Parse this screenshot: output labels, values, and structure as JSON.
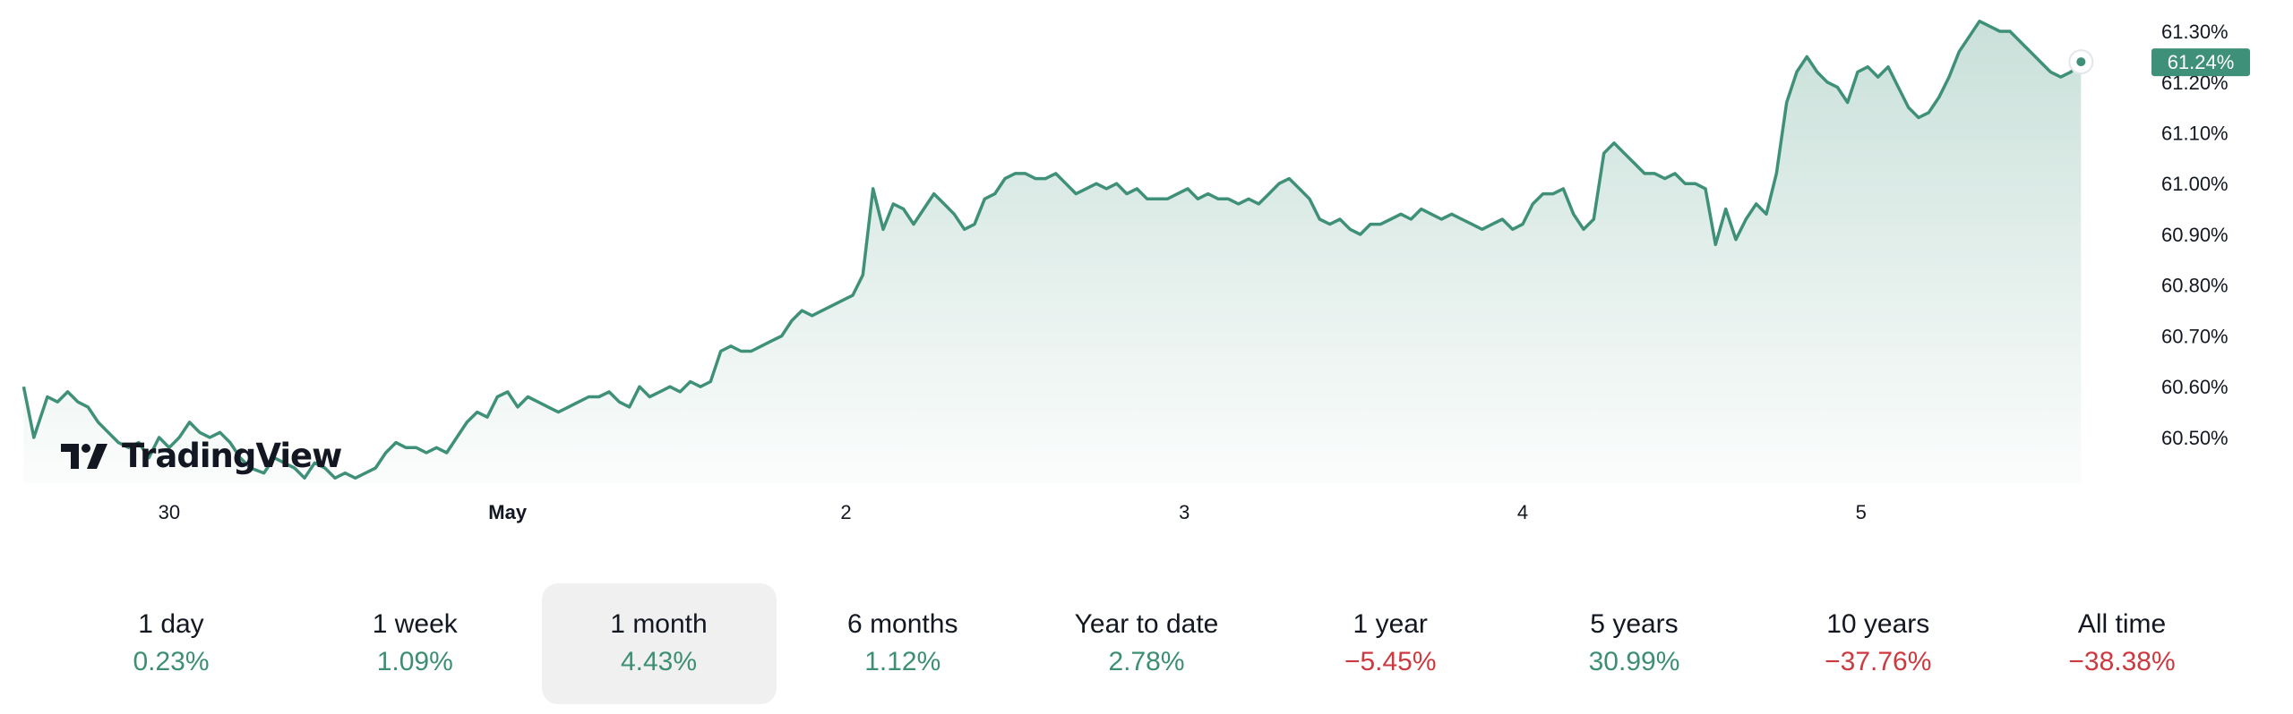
{
  "logo": {
    "text": "TradingView",
    "icon": "tradingview-logo-icon"
  },
  "colors": {
    "line": "#3f9078",
    "positive": "#3d8f72",
    "negative": "#cc3a40",
    "badge": "#3f9078"
  },
  "ranges": [
    {
      "label": "1 day",
      "value": "0.23%",
      "sign": "pos",
      "selected": false
    },
    {
      "label": "1 week",
      "value": "1.09%",
      "sign": "pos",
      "selected": false
    },
    {
      "label": "1 month",
      "value": "4.43%",
      "sign": "pos",
      "selected": true
    },
    {
      "label": "6 months",
      "value": "1.12%",
      "sign": "pos",
      "selected": false
    },
    {
      "label": "Year to date",
      "value": "2.78%",
      "sign": "pos",
      "selected": false
    },
    {
      "label": "1 year",
      "value": "−5.45%",
      "sign": "neg",
      "selected": false
    },
    {
      "label": "5 years",
      "value": "30.99%",
      "sign": "pos",
      "selected": false
    },
    {
      "label": "10 years",
      "value": "−37.76%",
      "sign": "neg",
      "selected": false
    },
    {
      "label": "All time",
      "value": "−38.38%",
      "sign": "neg",
      "selected": false
    }
  ],
  "chart_data": {
    "type": "area",
    "title": "",
    "xlabel": "",
    "ylabel": "",
    "x_ticks": [
      {
        "label": "30",
        "x": 0.5,
        "bold": false
      },
      {
        "label": "May",
        "x": 1.5,
        "bold": true
      },
      {
        "label": "2",
        "x": 2.5,
        "bold": false
      },
      {
        "label": "3",
        "x": 3.5,
        "bold": false
      },
      {
        "label": "4",
        "x": 4.5,
        "bold": false
      },
      {
        "label": "5",
        "x": 5.5,
        "bold": false
      }
    ],
    "xlim": [
      0,
      6.3
    ],
    "y_ticks": [
      "61.30%",
      "61.20%",
      "61.10%",
      "61.00%",
      "60.90%",
      "60.80%",
      "60.70%",
      "60.60%",
      "60.50%"
    ],
    "y_tick_values": [
      61.3,
      61.2,
      61.1,
      61.0,
      60.9,
      60.8,
      60.7,
      60.6,
      60.5
    ],
    "ylim": [
      60.41,
      61.33
    ],
    "last_value_label": "61.24%",
    "last_value": 61.24,
    "grid": false,
    "series": [
      {
        "points": [
          [
            0.07,
            60.6
          ],
          [
            0.1,
            60.5
          ],
          [
            0.14,
            60.58
          ],
          [
            0.17,
            60.57
          ],
          [
            0.2,
            60.59
          ],
          [
            0.23,
            60.57
          ],
          [
            0.26,
            60.56
          ],
          [
            0.29,
            60.53
          ],
          [
            0.32,
            60.51
          ],
          [
            0.35,
            60.49
          ],
          [
            0.38,
            60.48
          ],
          [
            0.41,
            60.49
          ],
          [
            0.44,
            60.46
          ],
          [
            0.47,
            60.5
          ],
          [
            0.5,
            60.48
          ],
          [
            0.53,
            60.5
          ],
          [
            0.56,
            60.53
          ],
          [
            0.59,
            60.51
          ],
          [
            0.62,
            60.5
          ],
          [
            0.65,
            60.51
          ],
          [
            0.68,
            60.49
          ],
          [
            0.71,
            60.46
          ],
          [
            0.74,
            60.44
          ],
          [
            0.78,
            60.43
          ],
          [
            0.81,
            60.46
          ],
          [
            0.84,
            60.45
          ],
          [
            0.87,
            60.44
          ],
          [
            0.9,
            60.42
          ],
          [
            0.93,
            60.45
          ],
          [
            0.96,
            60.44
          ],
          [
            0.99,
            60.42
          ],
          [
            1.02,
            60.43
          ],
          [
            1.05,
            60.42
          ],
          [
            1.08,
            60.43
          ],
          [
            1.11,
            60.44
          ],
          [
            1.14,
            60.47
          ],
          [
            1.17,
            60.49
          ],
          [
            1.2,
            60.48
          ],
          [
            1.23,
            60.48
          ],
          [
            1.26,
            60.47
          ],
          [
            1.29,
            60.48
          ],
          [
            1.32,
            60.47
          ],
          [
            1.35,
            60.5
          ],
          [
            1.38,
            60.53
          ],
          [
            1.41,
            60.55
          ],
          [
            1.44,
            60.54
          ],
          [
            1.47,
            60.58
          ],
          [
            1.5,
            60.59
          ],
          [
            1.53,
            60.56
          ],
          [
            1.56,
            60.58
          ],
          [
            1.59,
            60.57
          ],
          [
            1.62,
            60.56
          ],
          [
            1.65,
            60.55
          ],
          [
            1.68,
            60.56
          ],
          [
            1.71,
            60.57
          ],
          [
            1.74,
            60.58
          ],
          [
            1.77,
            60.58
          ],
          [
            1.8,
            60.59
          ],
          [
            1.83,
            60.57
          ],
          [
            1.86,
            60.56
          ],
          [
            1.89,
            60.6
          ],
          [
            1.92,
            60.58
          ],
          [
            1.95,
            60.59
          ],
          [
            1.98,
            60.6
          ],
          [
            2.01,
            60.59
          ],
          [
            2.04,
            60.61
          ],
          [
            2.07,
            60.6
          ],
          [
            2.1,
            60.61
          ],
          [
            2.13,
            60.67
          ],
          [
            2.16,
            60.68
          ],
          [
            2.19,
            60.67
          ],
          [
            2.22,
            60.67
          ],
          [
            2.25,
            60.68
          ],
          [
            2.28,
            60.69
          ],
          [
            2.31,
            60.7
          ],
          [
            2.34,
            60.73
          ],
          [
            2.37,
            60.75
          ],
          [
            2.4,
            60.74
          ],
          [
            2.43,
            60.75
          ],
          [
            2.46,
            60.76
          ],
          [
            2.49,
            60.77
          ],
          [
            2.52,
            60.78
          ],
          [
            2.55,
            60.82
          ],
          [
            2.58,
            60.99
          ],
          [
            2.61,
            60.91
          ],
          [
            2.64,
            60.96
          ],
          [
            2.67,
            60.95
          ],
          [
            2.7,
            60.92
          ],
          [
            2.73,
            60.95
          ],
          [
            2.76,
            60.98
          ],
          [
            2.79,
            60.96
          ],
          [
            2.82,
            60.94
          ],
          [
            2.85,
            60.91
          ],
          [
            2.88,
            60.92
          ],
          [
            2.91,
            60.97
          ],
          [
            2.94,
            60.98
          ],
          [
            2.97,
            61.01
          ],
          [
            3.0,
            61.02
          ],
          [
            3.03,
            61.02
          ],
          [
            3.06,
            61.01
          ],
          [
            3.09,
            61.01
          ],
          [
            3.12,
            61.02
          ],
          [
            3.15,
            61.0
          ],
          [
            3.18,
            60.98
          ],
          [
            3.21,
            60.99
          ],
          [
            3.24,
            61.0
          ],
          [
            3.27,
            60.99
          ],
          [
            3.3,
            61.0
          ],
          [
            3.33,
            60.98
          ],
          [
            3.36,
            60.99
          ],
          [
            3.39,
            60.97
          ],
          [
            3.42,
            60.97
          ],
          [
            3.45,
            60.97
          ],
          [
            3.48,
            60.98
          ],
          [
            3.51,
            60.99
          ],
          [
            3.54,
            60.97
          ],
          [
            3.57,
            60.98
          ],
          [
            3.6,
            60.97
          ],
          [
            3.63,
            60.97
          ],
          [
            3.66,
            60.96
          ],
          [
            3.69,
            60.97
          ],
          [
            3.72,
            60.96
          ],
          [
            3.75,
            60.98
          ],
          [
            3.78,
            61.0
          ],
          [
            3.81,
            61.01
          ],
          [
            3.84,
            60.99
          ],
          [
            3.87,
            60.97
          ],
          [
            3.9,
            60.93
          ],
          [
            3.93,
            60.92
          ],
          [
            3.96,
            60.93
          ],
          [
            3.99,
            60.91
          ],
          [
            4.02,
            60.9
          ],
          [
            4.05,
            60.92
          ],
          [
            4.08,
            60.92
          ],
          [
            4.11,
            60.93
          ],
          [
            4.14,
            60.94
          ],
          [
            4.17,
            60.93
          ],
          [
            4.2,
            60.95
          ],
          [
            4.23,
            60.94
          ],
          [
            4.26,
            60.93
          ],
          [
            4.29,
            60.94
          ],
          [
            4.32,
            60.93
          ],
          [
            4.35,
            60.92
          ],
          [
            4.38,
            60.91
          ],
          [
            4.41,
            60.92
          ],
          [
            4.44,
            60.93
          ],
          [
            4.47,
            60.91
          ],
          [
            4.5,
            60.92
          ],
          [
            4.53,
            60.96
          ],
          [
            4.56,
            60.98
          ],
          [
            4.59,
            60.98
          ],
          [
            4.62,
            60.99
          ],
          [
            4.65,
            60.94
          ],
          [
            4.68,
            60.91
          ],
          [
            4.71,
            60.93
          ],
          [
            4.74,
            61.06
          ],
          [
            4.77,
            61.08
          ],
          [
            4.8,
            61.06
          ],
          [
            4.83,
            61.04
          ],
          [
            4.86,
            61.02
          ],
          [
            4.89,
            61.02
          ],
          [
            4.92,
            61.01
          ],
          [
            4.95,
            61.02
          ],
          [
            4.98,
            61.0
          ],
          [
            5.01,
            61.0
          ],
          [
            5.04,
            60.99
          ],
          [
            5.07,
            60.88
          ],
          [
            5.1,
            60.95
          ],
          [
            5.13,
            60.89
          ],
          [
            5.16,
            60.93
          ],
          [
            5.19,
            60.96
          ],
          [
            5.22,
            60.94
          ],
          [
            5.25,
            61.02
          ],
          [
            5.28,
            61.16
          ],
          [
            5.31,
            61.22
          ],
          [
            5.34,
            61.25
          ],
          [
            5.37,
            61.22
          ],
          [
            5.4,
            61.2
          ],
          [
            5.43,
            61.19
          ],
          [
            5.46,
            61.16
          ],
          [
            5.49,
            61.22
          ],
          [
            5.52,
            61.23
          ],
          [
            5.55,
            61.21
          ],
          [
            5.58,
            61.23
          ],
          [
            5.61,
            61.19
          ],
          [
            5.64,
            61.15
          ],
          [
            5.67,
            61.13
          ],
          [
            5.7,
            61.14
          ],
          [
            5.73,
            61.17
          ],
          [
            5.76,
            61.21
          ],
          [
            5.79,
            61.26
          ],
          [
            5.82,
            61.29
          ],
          [
            5.85,
            61.32
          ],
          [
            5.88,
            61.31
          ],
          [
            5.91,
            61.3
          ],
          [
            5.94,
            61.3
          ],
          [
            5.97,
            61.28
          ],
          [
            6.0,
            61.26
          ],
          [
            6.03,
            61.24
          ],
          [
            6.06,
            61.22
          ],
          [
            6.09,
            61.21
          ],
          [
            6.12,
            61.22
          ],
          [
            6.15,
            61.24
          ]
        ]
      }
    ]
  }
}
